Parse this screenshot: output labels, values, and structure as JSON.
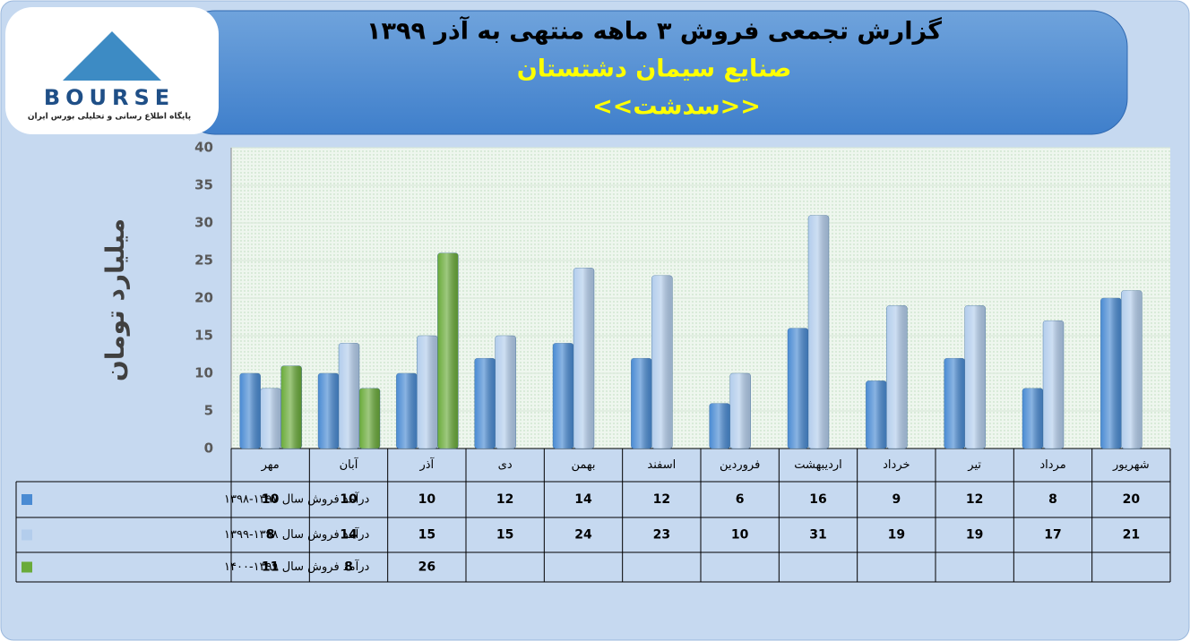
{
  "logo": {
    "name": "BOURSE",
    "tagline": "پایگاه اطلاع رسانی و تحلیلی بورس ایران"
  },
  "chart_data": {
    "type": "bar",
    "title": "گزارش تجمعی فروش ۳ ماهه منتهی به آذر ۱۳۹۹",
    "subtitle": "صنایع سیمان دشتستان",
    "symbol": "<<سدشت>>",
    "y_label": "میلیارد تومان",
    "categories": [
      "مهر",
      "آبان",
      "آذر",
      "دی",
      "بهمن",
      "اسفند",
      "فروردین",
      "اردیبهشت",
      "خرداد",
      "تیر",
      "مرداد",
      "شهریور"
    ],
    "series": [
      {
        "name": "درآمد فروش سال ۱۳۹۷-۱۳۹۸",
        "color": "#4a8bd3",
        "values": [
          10,
          10,
          10,
          12,
          14,
          12,
          6,
          16,
          9,
          12,
          8,
          20
        ]
      },
      {
        "name": "درآمد فروش سال ۱۳۹۸-۱۳۹۹",
        "color": "#b3cdec",
        "values": [
          8,
          14,
          15,
          15,
          24,
          23,
          10,
          31,
          19,
          19,
          17,
          21
        ]
      },
      {
        "name": "درآمد فروش سال ۱۳۹۹-۱۴۰۰",
        "color": "#6aab3a",
        "values": [
          11,
          8,
          26,
          null,
          null,
          null,
          null,
          null,
          null,
          null,
          null,
          null
        ]
      }
    ],
    "ylim": [
      0,
      40
    ],
    "yticks": [
      0,
      5,
      10,
      15,
      20,
      25,
      30,
      35,
      40
    ],
    "grid": true
  }
}
